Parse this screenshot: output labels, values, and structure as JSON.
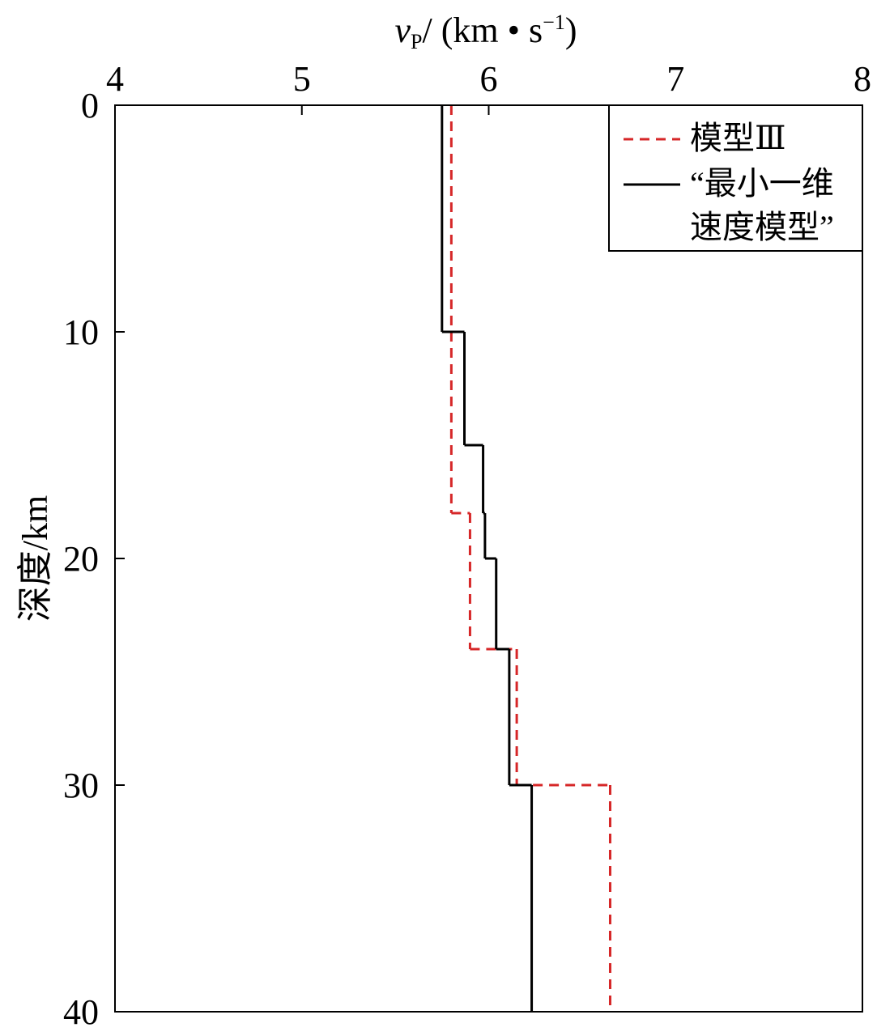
{
  "chart_data": {
    "type": "step",
    "x_label_parts": [
      "v",
      "P",
      "/ (km • s",
      "−1",
      ")"
    ],
    "y_label": "深度/km",
    "xlim": [
      4,
      8
    ],
    "xticks": [
      4,
      5,
      6,
      7,
      8
    ],
    "ylim": [
      0,
      40
    ],
    "yticks": [
      0,
      10,
      20,
      30,
      40
    ],
    "y_inverted": true,
    "legend": "upper right",
    "series": [
      {
        "name": "模型Ⅲ",
        "color": "#d62728",
        "dash": true,
        "depths": [
          0,
          18,
          24,
          30,
          40
        ],
        "values": [
          5.8,
          5.9,
          6.15,
          6.65
        ]
      },
      {
        "name": "“最小一维速度模型”",
        "color": "#000000",
        "dash": false,
        "depths": [
          0,
          10,
          15,
          18,
          20,
          24,
          30,
          40
        ],
        "values": [
          5.75,
          5.87,
          5.97,
          5.98,
          6.04,
          6.11,
          6.23
        ]
      }
    ]
  }
}
